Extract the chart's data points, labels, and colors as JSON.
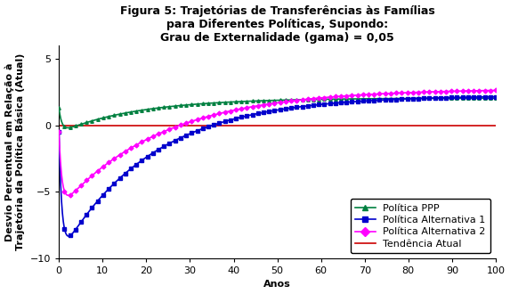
{
  "title_line1": "Figura 5: Trajetórias de Transferências às Famílias",
  "title_line2": "para Diferentes Políticas, Supondo:",
  "title_line3": "Grau de Externalidade (gama) = 0,05",
  "xlabel": "Anos",
  "ylabel": "Desvio Percentual em Relação à\nTrajetória da Política Básica (Atual)",
  "xlim": [
    0,
    100
  ],
  "ylim": [
    -10,
    6
  ],
  "yticks": [
    -10,
    -5,
    0,
    5
  ],
  "xticks": [
    0,
    10,
    20,
    30,
    40,
    50,
    60,
    70,
    80,
    90,
    100
  ],
  "series": {
    "ppp": {
      "label": "Política PPP",
      "color": "#008040",
      "marker": "^",
      "start": 1.3,
      "dip_t": 3.0,
      "dip_val": -0.55,
      "asymptote": 2.05,
      "rate": 0.055
    },
    "alt1": {
      "label": "Política Alternativa 1",
      "color": "#0000CC",
      "marker": "s",
      "start": -0.5,
      "dip_t": 1.5,
      "dip_val": -9.9,
      "asymptote": 2.25,
      "rate": 0.048
    },
    "alt2": {
      "label": "Política Alternativa 2",
      "color": "#FF00FF",
      "marker": "D",
      "start": -0.5,
      "dip_t": 2.5,
      "dip_val": -6.3,
      "asymptote": 2.75,
      "rate": 0.043
    },
    "atual": {
      "label": "Tendência Atual",
      "color": "#CC0000",
      "value": 0.0
    }
  },
  "background_color": "#FFFFFF",
  "title_fontsize": 9,
  "label_fontsize": 8,
  "tick_fontsize": 8,
  "legend_fontsize": 8
}
